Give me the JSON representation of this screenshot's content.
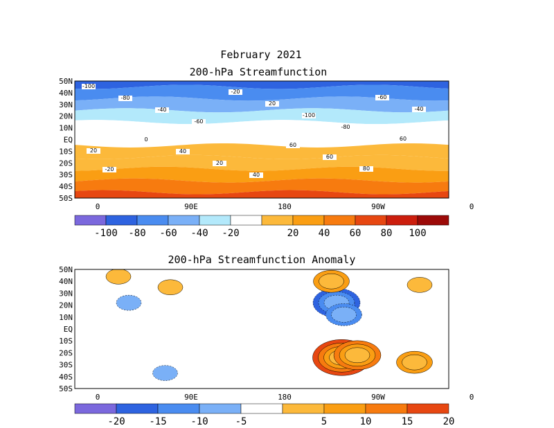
{
  "page_title": "February 2021",
  "colors": {
    "neg": [
      "#7b68dd",
      "#2e63e0",
      "#4a8cf0",
      "#7ab0f7",
      "#b3e9fb"
    ],
    "neutral": "#ffffff",
    "pos": [
      "#fcb93b",
      "#fa9e13",
      "#f77b0f",
      "#e74711",
      "#cc1e0d",
      "#9c0a08"
    ]
  },
  "chart_data": [
    {
      "type": "heatmap",
      "title": "200-hPa Streamfunction",
      "lat_labels": [
        "50N",
        "40N",
        "30N",
        "20N",
        "10N",
        "EQ",
        "10S",
        "20S",
        "30S",
        "40S",
        "50S"
      ],
      "lon_labels": [
        "0",
        "90E",
        "180",
        "90W",
        "0"
      ],
      "colorbar_labels": [
        "-100",
        "-80",
        "-60",
        "-40",
        "-20",
        "20",
        "40",
        "60",
        "80",
        "100"
      ],
      "contour_labels": [
        "-100",
        "-80",
        "-40",
        "-60",
        "-20",
        "20",
        "-100",
        "-80",
        "-60",
        "-40",
        "-20",
        "0",
        "40",
        "20",
        "40",
        "60",
        "60",
        "80",
        "60",
        "20"
      ],
      "bands": [
        {
          "lat": 50,
          "level": -80
        },
        {
          "lat": 40,
          "level": -60
        },
        {
          "lat": 30,
          "level": -40
        },
        {
          "lat": 20,
          "level": -20
        },
        {
          "lat": 10,
          "level": 0
        },
        {
          "lat": 0,
          "level": 0
        },
        {
          "lat": -10,
          "level": 20
        },
        {
          "lat": -20,
          "level": 20
        },
        {
          "lat": -30,
          "level": 40
        },
        {
          "lat": -40,
          "level": 60
        },
        {
          "lat": -50,
          "level": 80
        }
      ]
    },
    {
      "type": "heatmap",
      "title": "200-hPa Streamfunction Anomaly",
      "lat_labels": [
        "50N",
        "40N",
        "30N",
        "20N",
        "10N",
        "EQ",
        "10S",
        "20S",
        "30S",
        "40S",
        "50S"
      ],
      "lon_labels": [
        "0",
        "90E",
        "180",
        "90W",
        "0"
      ],
      "colorbar_labels": [
        "-20",
        "-15",
        "-10",
        "-5",
        "5",
        "10",
        "15",
        "20"
      ],
      "features": [
        {
          "lon": 235,
          "lat": -24,
          "value": 20
        },
        {
          "lon": 250,
          "lat": -22,
          "value": 17
        },
        {
          "lon": 230,
          "lat": 22,
          "value": -18
        },
        {
          "lon": 237,
          "lat": 12,
          "value": -13
        },
        {
          "lon": 305,
          "lat": -28,
          "value": 14
        },
        {
          "lon": 225,
          "lat": 40,
          "value": 12
        },
        {
          "lon": 30,
          "lat": 22,
          "value": -9
        },
        {
          "lon": 310,
          "lat": 37,
          "value": 8
        },
        {
          "lon": 20,
          "lat": 44,
          "value": 7
        },
        {
          "lon": 70,
          "lat": 35,
          "value": 6
        },
        {
          "lon": 65,
          "lat": -37,
          "value": -8
        }
      ]
    }
  ]
}
